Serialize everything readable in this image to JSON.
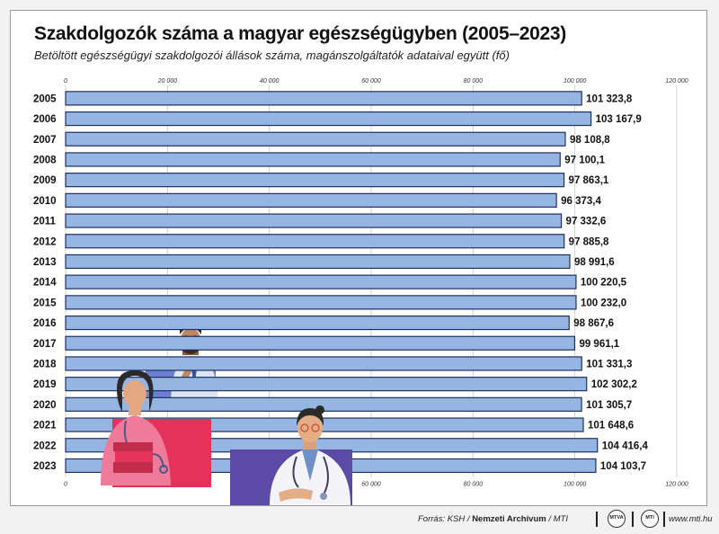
{
  "colors": {
    "bar_fill": "#95b6e3",
    "bar_stroke": "#1f2f5e",
    "accent_red": "#e5325a",
    "accent_purple": "#5b4aa6",
    "accent_blue": "#6e7fd1"
  },
  "footer": {
    "source_prefix": "Forrás: KSH / ",
    "source_archive": "Nemzeti Archívum",
    "source_suffix": " / MTI",
    "logo1": "MTVA",
    "logo2": "MTI",
    "website": "www.mti.hu"
  },
  "illustration": {
    "icons": [
      "thinking-man-icon",
      "woman-with-books-icon",
      "doctor-with-stethoscope-icon"
    ]
  },
  "chart_data": {
    "type": "bar",
    "orientation": "horizontal",
    "title": "Szakdolgozók száma a magyar egészségügyben (2005–2023)",
    "subtitle": "Betöltött egészségügyi szakdolgozói állások száma, magánszolgáltatók adataival együtt (fő)",
    "xlim": [
      0,
      120000
    ],
    "ticks": [
      0,
      20000,
      40000,
      60000,
      80000,
      100000,
      120000
    ],
    "tick_labels": [
      "0",
      "20 000",
      "40 000",
      "60 000",
      "80 000",
      "100 000",
      "120 000"
    ],
    "grid": true,
    "categories": [
      "2005",
      "2006",
      "2007",
      "2008",
      "2009",
      "2010",
      "2011",
      "2012",
      "2013",
      "2014",
      "2015",
      "2016",
      "2017",
      "2018",
      "2019",
      "2020",
      "2021",
      "2022",
      "2023"
    ],
    "values": [
      101323.8,
      103167.9,
      98108.8,
      97100.1,
      97863.1,
      96373.4,
      97332.6,
      97885.8,
      98991.6,
      100220.5,
      100232.0,
      98867.6,
      99961.1,
      101331.3,
      102302.2,
      101305.7,
      101648.6,
      104416.4,
      104103.7
    ],
    "value_labels": [
      "101 323,8",
      "103 167,9",
      "98 108,8",
      "97 100,1",
      "97 863,1",
      "96 373,4",
      "97 332,6",
      "97 885,8",
      "98 991,6",
      "100 220,5",
      "100 232,0",
      "98 867,6",
      "99 961,1",
      "101 331,3",
      "102 302,2",
      "101 305,7",
      "101 648,6",
      "104 416,4",
      "104 103,7"
    ]
  }
}
